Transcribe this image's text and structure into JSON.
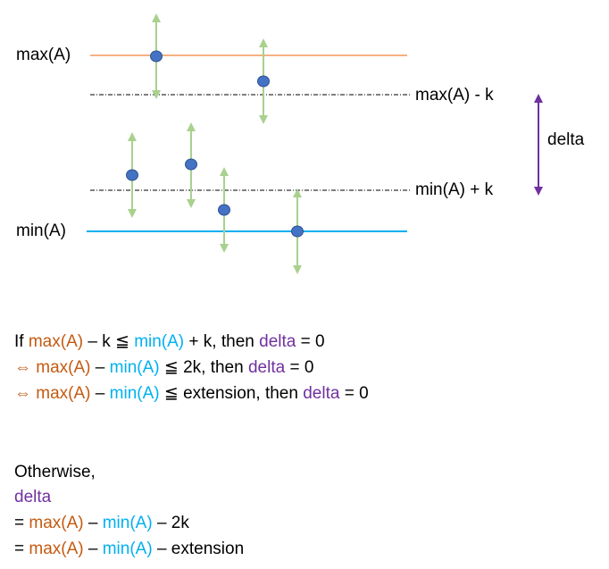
{
  "labels": {
    "max": "max(A)",
    "min": "min(A)",
    "max_minus_k": "max(A) - k",
    "min_plus_k": "min(A) + k",
    "delta": "delta"
  },
  "conditions": {
    "line1": {
      "prefix": "If ",
      "max": "max(A)",
      "op": " – k ≦ ",
      "min": "min(A)",
      "rest": " + k, then ",
      "delta": "delta",
      "end": " = 0"
    },
    "line2": {
      "prefix": "⇔ ",
      "max": "max(A)",
      "op": " – ",
      "min": "min(A)",
      "rest": " ≦ 2k, then ",
      "delta": "delta",
      "end": " = 0"
    },
    "line3": {
      "prefix": "⇔ ",
      "max": "max(A)",
      "op": " – ",
      "min": "min(A)",
      "rest": " ≦ extension, then ",
      "delta": "delta",
      "end": " = 0"
    }
  },
  "otherwise": {
    "label": "Otherwise,",
    "delta": "delta",
    "eq1": {
      "prefix": "= ",
      "max": "max(A)",
      "op": " – ",
      "min": "min(A)",
      "rest": " – 2k"
    },
    "eq2": {
      "prefix": "= ",
      "max": "max(A)",
      "op": " – ",
      "min": "min(A)",
      "rest": " – extension"
    }
  },
  "colors": {
    "max_line": "#f4b183",
    "min_line": "#00b0f0",
    "arrows": "#a9d18e",
    "points": "#4472c4",
    "delta_arrow": "#7030a0",
    "max_text": "#c55a11",
    "min_text": "#00b0f0",
    "delta_text": "#7030a0"
  }
}
